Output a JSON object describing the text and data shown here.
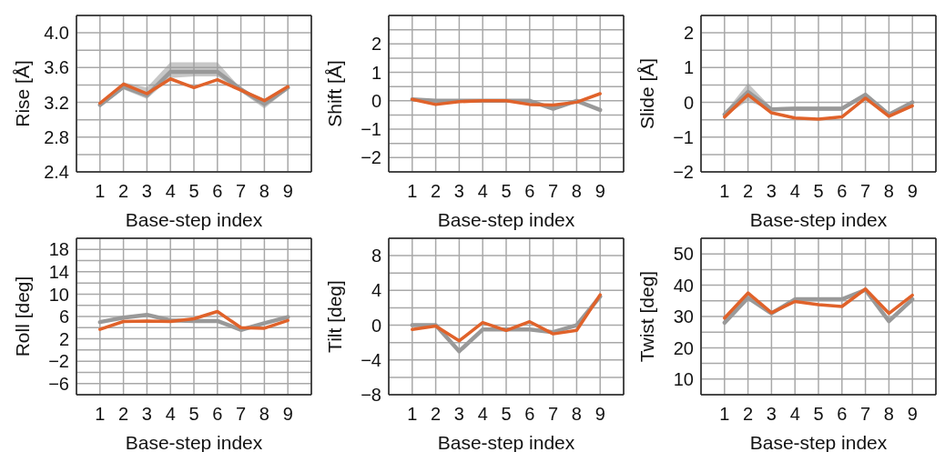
{
  "chart_data": [
    {
      "type": "line",
      "ylabel": "Rise [Å]",
      "xlabel": "Base-step index",
      "x": [
        1,
        2,
        3,
        4,
        5,
        6,
        7,
        8,
        9
      ],
      "xlim": [
        0,
        10
      ],
      "xticks": [
        1,
        2,
        3,
        4,
        5,
        6,
        7,
        8,
        9
      ],
      "ylim": [
        2.4,
        4.2
      ],
      "yticks": [
        2.4,
        {
          "value": 2.6,
          "label": null
        },
        2.8,
        {
          "value": 3.0,
          "label": null
        },
        3.2,
        {
          "value": 3.4,
          "label": null
        },
        3.6,
        {
          "value": 3.8,
          "label": null
        },
        {
          "value": 4.0,
          "label": "4.0"
        }
      ],
      "grid": true,
      "series": [
        {
          "color": "#999999",
          "values": [
            3.17,
            3.38,
            3.28,
            3.55,
            3.55,
            3.55,
            3.35,
            3.18,
            3.37
          ],
          "lower": [
            3.14,
            3.35,
            3.24,
            3.48,
            3.5,
            3.5,
            3.32,
            3.13,
            3.35
          ],
          "upper": [
            3.2,
            3.43,
            3.37,
            3.66,
            3.66,
            3.66,
            3.36,
            3.24,
            3.4
          ]
        },
        {
          "color": "#e0622a",
          "values": [
            3.19,
            3.41,
            3.3,
            3.47,
            3.37,
            3.46,
            3.34,
            3.22,
            3.38
          ]
        }
      ]
    },
    {
      "type": "line",
      "ylabel": "Shift [Å]",
      "xlabel": "Base-step index",
      "x": [
        1,
        2,
        3,
        4,
        5,
        6,
        7,
        8,
        9
      ],
      "xlim": [
        0,
        10
      ],
      "xticks": [
        1,
        2,
        3,
        4,
        5,
        6,
        7,
        8,
        9
      ],
      "ylim": [
        -2.5,
        3
      ],
      "yticks": [
        -2,
        {
          "value": -1.5,
          "label": null
        },
        -1,
        {
          "value": -0.5,
          "label": null
        },
        0,
        {
          "value": 0.5,
          "label": null
        },
        1,
        {
          "value": 1.5,
          "label": null
        },
        2,
        {
          "value": 2.5,
          "label": null
        }
      ],
      "grid": true,
      "series": [
        {
          "color": "#999999",
          "values": [
            0.05,
            0,
            0,
            0,
            0,
            0,
            -0.28,
            0,
            -0.32
          ]
        },
        {
          "color": "#e0622a",
          "values": [
            0.05,
            -0.13,
            -0.03,
            0,
            0,
            -0.13,
            -0.15,
            -0.05,
            0.25
          ]
        }
      ]
    },
    {
      "type": "line",
      "ylabel": "Slide [Å]",
      "xlabel": "Base-step index",
      "x": [
        1,
        2,
        3,
        4,
        5,
        6,
        7,
        8,
        9
      ],
      "xlim": [
        0,
        10
      ],
      "xticks": [
        1,
        2,
        3,
        4,
        5,
        6,
        7,
        8,
        9
      ],
      "ylim": [
        -2,
        2.5
      ],
      "yticks": [
        -2,
        {
          "value": -1.5,
          "label": null
        },
        -1,
        {
          "value": -0.5,
          "label": null
        },
        0,
        {
          "value": 0.5,
          "label": null
        },
        1,
        {
          "value": 1.5,
          "label": null
        },
        2
      ],
      "grid": true,
      "series": [
        {
          "color": "#999999",
          "values": [
            -0.35,
            0.3,
            -0.2,
            -0.18,
            -0.18,
            -0.18,
            0.22,
            -0.35,
            0
          ],
          "lower": [
            -0.4,
            0.05,
            -0.25,
            -0.25,
            -0.25,
            -0.25,
            0.15,
            -0.4,
            -0.05
          ],
          "upper": [
            -0.3,
            0.55,
            -0.15,
            -0.12,
            -0.12,
            -0.12,
            0.28,
            -0.3,
            0.05
          ]
        },
        {
          "color": "#e0622a",
          "values": [
            -0.42,
            0.22,
            -0.3,
            -0.45,
            -0.48,
            -0.42,
            0.12,
            -0.4,
            -0.1
          ]
        }
      ]
    },
    {
      "type": "line",
      "ylabel": "Roll [deg]",
      "xlabel": "Base-step index",
      "x": [
        1,
        2,
        3,
        4,
        5,
        6,
        7,
        8,
        9
      ],
      "xlim": [
        0,
        10
      ],
      "xticks": [
        1,
        2,
        3,
        4,
        5,
        6,
        7,
        8,
        9
      ],
      "ylim": [
        -8,
        20
      ],
      "yticks": [
        -6,
        {
          "value": -4,
          "label": null
        },
        -2,
        {
          "value": 0,
          "label": null
        },
        2,
        {
          "value": 4,
          "label": null
        },
        6,
        {
          "value": 8,
          "label": null
        },
        10,
        {
          "value": 12,
          "label": null
        },
        14,
        {
          "value": 16,
          "label": null
        },
        18
      ],
      "grid": true,
      "series": [
        {
          "color": "#999999",
          "values": [
            5,
            5.8,
            6.3,
            5.3,
            5.2,
            5.2,
            3.6,
            4.8,
            5.9
          ]
        },
        {
          "color": "#e0622a",
          "values": [
            3.7,
            5.1,
            5.2,
            5.1,
            5.6,
            6.9,
            4,
            3.9,
            5.3
          ]
        }
      ]
    },
    {
      "type": "line",
      "ylabel": "Tilt [deg]",
      "xlabel": "Base-step index",
      "x": [
        1,
        2,
        3,
        4,
        5,
        6,
        7,
        8,
        9
      ],
      "xlim": [
        0,
        10
      ],
      "xticks": [
        1,
        2,
        3,
        4,
        5,
        6,
        7,
        8,
        9
      ],
      "ylim": [
        -8,
        10
      ],
      "yticks": [
        -8,
        {
          "value": -6,
          "label": null
        },
        -4,
        {
          "value": -2,
          "label": null
        },
        0,
        {
          "value": 2,
          "label": null
        },
        4,
        {
          "value": 6,
          "label": null
        },
        8
      ],
      "grid": true,
      "series": [
        {
          "color": "#999999",
          "values": [
            0,
            0,
            -3,
            -0.5,
            -0.5,
            -0.5,
            -0.8,
            0,
            3.3
          ]
        },
        {
          "color": "#e0622a",
          "values": [
            -0.5,
            -0.1,
            -1.8,
            0.3,
            -0.6,
            0.4,
            -1,
            -0.6,
            3.5
          ]
        }
      ]
    },
    {
      "type": "line",
      "ylabel": "Twist [deg]",
      "xlabel": "Base-step index",
      "x": [
        1,
        2,
        3,
        4,
        5,
        6,
        7,
        8,
        9
      ],
      "xlim": [
        0,
        10
      ],
      "xticks": [
        1,
        2,
        3,
        4,
        5,
        6,
        7,
        8,
        9
      ],
      "ylim": [
        5,
        55
      ],
      "yticks": [
        10,
        {
          "value": 15,
          "label": null
        },
        20,
        {
          "value": 25,
          "label": null
        },
        30,
        {
          "value": 35,
          "label": null
        },
        40,
        {
          "value": 45,
          "label": null
        },
        50
      ],
      "grid": true,
      "series": [
        {
          "color": "#999999",
          "values": [
            28,
            36,
            31,
            35.5,
            35.5,
            35.5,
            38.5,
            28.5,
            35.5
          ]
        },
        {
          "color": "#e0622a",
          "values": [
            29.5,
            37.5,
            31.2,
            34.8,
            33.8,
            33.2,
            38.8,
            31,
            36.8
          ]
        }
      ]
    }
  ]
}
